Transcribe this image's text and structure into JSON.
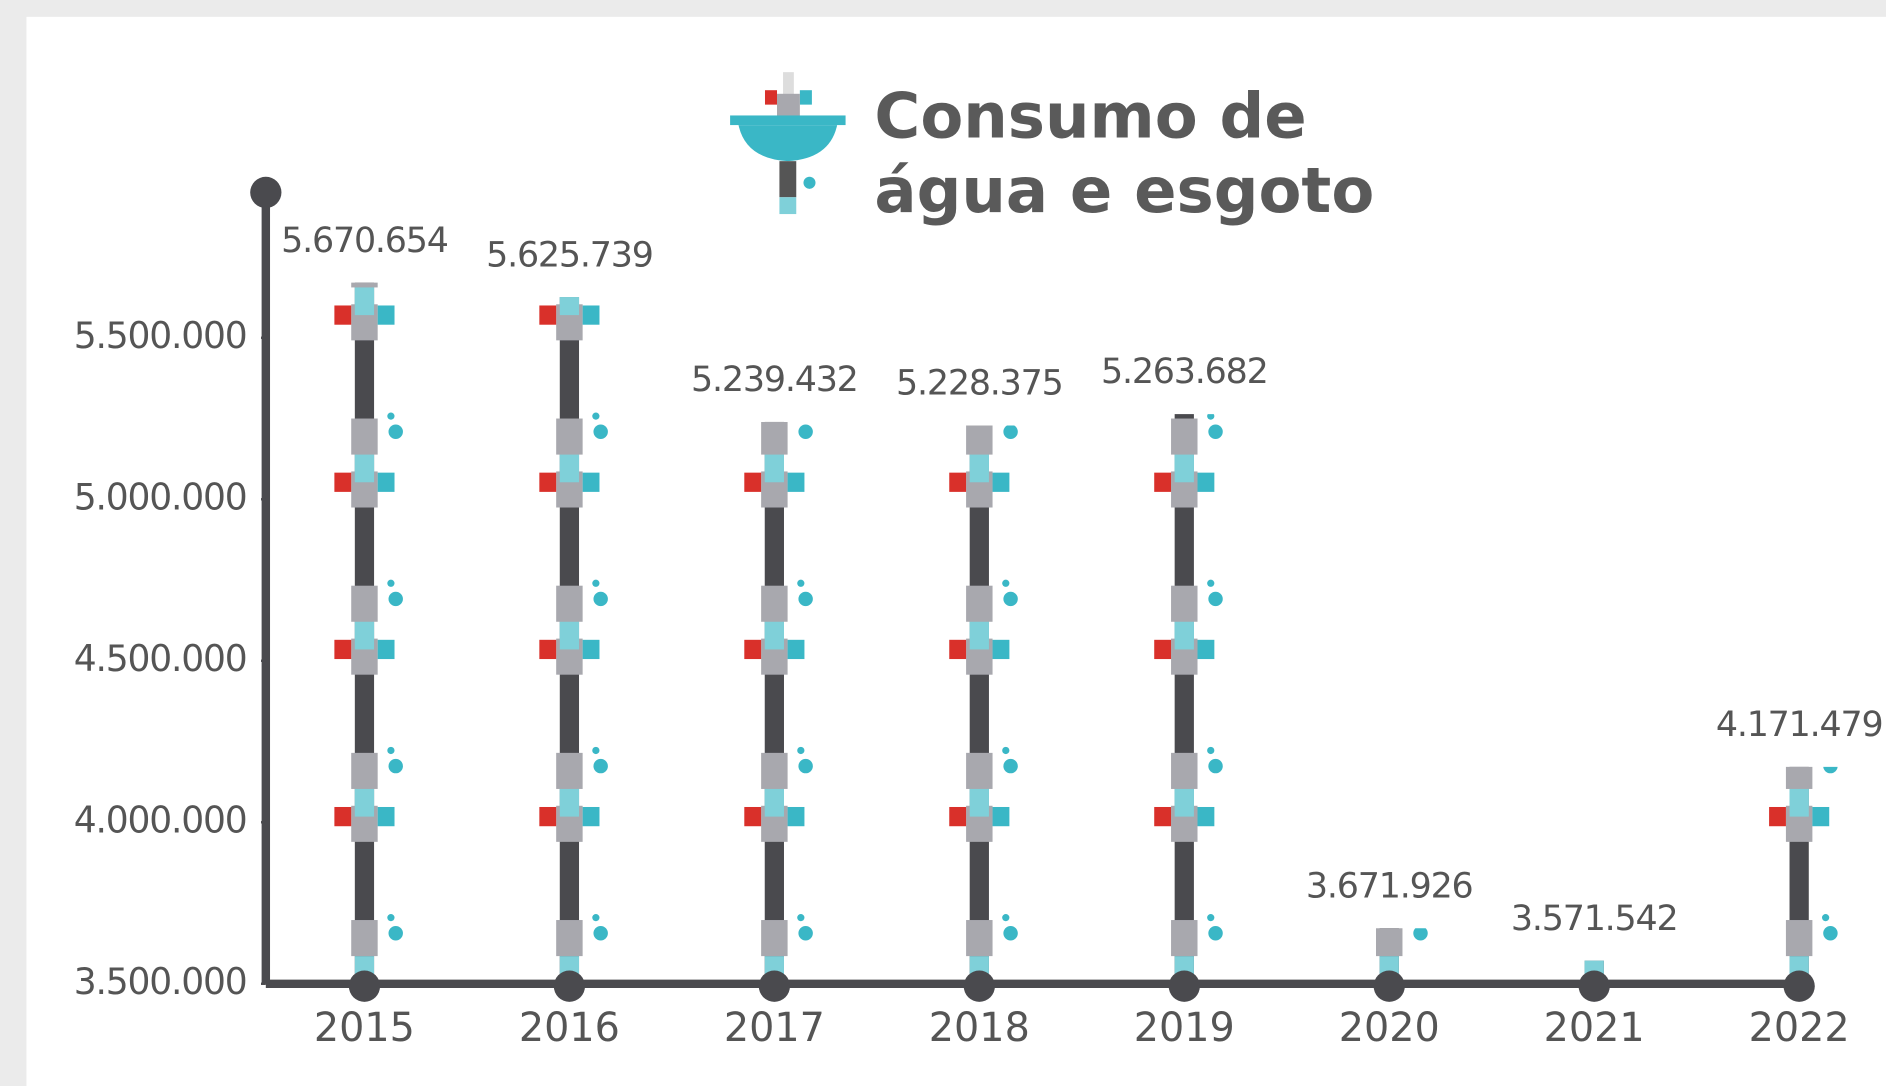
{
  "chart_data": {
    "type": "bar",
    "title": [
      "Consumo de",
      "água e esgoto"
    ],
    "categories": [
      "2015",
      "2016",
      "2017",
      "2018",
      "2019",
      "2020",
      "2021",
      "2022"
    ],
    "values": [
      5670654,
      5625739,
      5239432,
      5228375,
      5263682,
      3671926,
      3571542,
      4171479
    ],
    "value_labels": [
      "5.670.654",
      "5.625.739",
      "5.239.432",
      "5.228.375",
      "5.263.682",
      "3.671.926",
      "3.571.542",
      "4.171.479"
    ],
    "color": "#4a4a4e",
    "ylim": [
      3500000,
      5950000
    ],
    "yticks": [
      {
        "value": 3500000,
        "label": "3.500.000"
      },
      {
        "value": 4000000,
        "label": "4.000.000"
      },
      {
        "value": 4500000,
        "label": "4.500.000"
      },
      {
        "value": 5000000,
        "label": "5.000.000"
      },
      {
        "value": 5500000,
        "label": "5.500.000"
      }
    ]
  }
}
